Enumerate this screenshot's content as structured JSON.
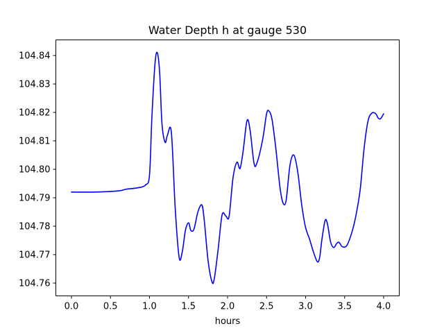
{
  "chart_data": {
    "type": "line",
    "title": "Water Depth h at gauge 530",
    "xlabel": "hours",
    "ylabel": "",
    "xlim": [
      -0.2,
      4.2
    ],
    "ylim": [
      104.7555,
      104.8455
    ],
    "grid": false,
    "xticks": [
      0.0,
      0.5,
      1.0,
      1.5,
      2.0,
      2.5,
      3.0,
      3.5,
      4.0
    ],
    "xtick_labels": [
      "0.0",
      "0.5",
      "1.0",
      "1.5",
      "2.0",
      "2.5",
      "3.0",
      "3.5",
      "4.0"
    ],
    "yticks": [
      104.76,
      104.77,
      104.78,
      104.79,
      104.8,
      104.81,
      104.82,
      104.83,
      104.84
    ],
    "ytick_labels": [
      "104.76",
      "104.77",
      "104.78",
      "104.79",
      "104.80",
      "104.81",
      "104.82",
      "104.83",
      "104.84"
    ],
    "series": [
      {
        "color": "#0000ff",
        "x": [
          0.0,
          0.3,
          0.6,
          0.7,
          0.85,
          0.95,
          1.0,
          1.03,
          1.07,
          1.1,
          1.13,
          1.16,
          1.2,
          1.23,
          1.28,
          1.33,
          1.38,
          1.42,
          1.46,
          1.5,
          1.53,
          1.57,
          1.62,
          1.67,
          1.7,
          1.75,
          1.8,
          1.83,
          1.88,
          1.93,
          1.98,
          2.02,
          2.07,
          2.12,
          2.16,
          2.2,
          2.25,
          2.29,
          2.34,
          2.38,
          2.45,
          2.5,
          2.53,
          2.57,
          2.62,
          2.67,
          2.71,
          2.75,
          2.8,
          2.85,
          2.9,
          2.95,
          3.0,
          3.05,
          3.1,
          3.15,
          3.18,
          3.21,
          3.25,
          3.28,
          3.32,
          3.36,
          3.4,
          3.43,
          3.47,
          3.53,
          3.6,
          3.65,
          3.7,
          3.75,
          3.8,
          3.85,
          3.9,
          3.93,
          3.96,
          4.0
        ],
        "y": [
          104.792,
          104.792,
          104.7924,
          104.793,
          104.7935,
          104.7945,
          104.798,
          104.818,
          104.837,
          104.841,
          104.834,
          104.816,
          104.8095,
          104.812,
          104.813,
          104.786,
          104.769,
          104.771,
          104.7785,
          104.7812,
          104.7785,
          104.779,
          104.785,
          104.7875,
          104.7825,
          104.768,
          104.7605,
          104.7615,
          104.772,
          104.784,
          104.7835,
          104.7835,
          104.797,
          104.8025,
          104.8003,
          104.8065,
          104.8172,
          104.8135,
          104.802,
          104.8025,
          104.8105,
          104.8195,
          104.8205,
          104.8175,
          104.807,
          104.794,
          104.7882,
          104.789,
          104.8015,
          104.805,
          104.799,
          104.7875,
          104.7795,
          104.7755,
          104.771,
          104.7675,
          104.769,
          104.7755,
          104.782,
          104.7808,
          104.7745,
          104.7725,
          104.774,
          104.7743,
          104.7728,
          104.7733,
          104.7785,
          104.7845,
          104.793,
          104.8075,
          104.817,
          104.8198,
          104.8195,
          104.818,
          104.8178,
          104.8195
        ]
      }
    ]
  }
}
